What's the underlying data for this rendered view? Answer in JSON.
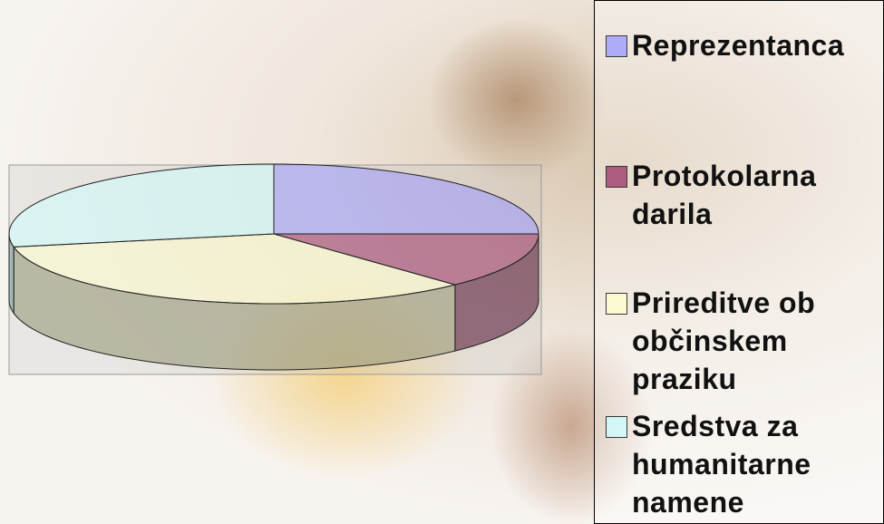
{
  "chart_data": {
    "type": "pie3d",
    "categories": [
      "Reprezentanca",
      "Protokolarna darila",
      "Prireditve ob občinskem praziku",
      "Sredstva za humanitarne namene"
    ],
    "values": [
      25,
      13,
      34,
      28
    ],
    "colors": [
      "#9999ff",
      "#993366",
      "#ffffcc",
      "#ccffff"
    ],
    "legend": "right"
  }
}
